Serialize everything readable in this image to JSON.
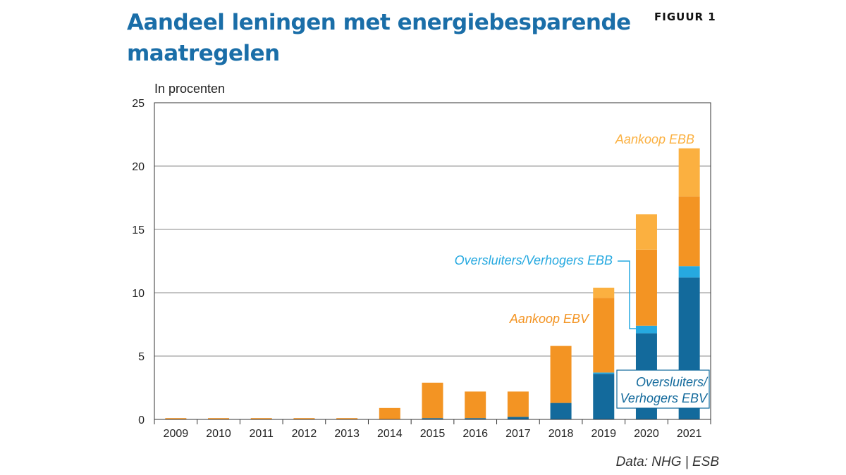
{
  "header": {
    "title": "Aandeel leningen met energiebesparende maatregelen",
    "figure_label": "FIGUUR 1"
  },
  "footer": {
    "source": "Data: NHG | ESB"
  },
  "colors": {
    "oversluiters_ebv": "#136a9c",
    "oversluiters_ebb": "#26a9e0",
    "aankoop_ebv": "#f39423",
    "aankoop_ebb": "#fbb040",
    "gridline": "#888888",
    "axis": "#333333"
  },
  "chart_data": {
    "type": "bar",
    "stacked": true,
    "title": "Aandeel leningen met energiebesparende maatregelen",
    "ylabel": "In procenten",
    "xlabel": "",
    "ylim": [
      0,
      25
    ],
    "yticks": [
      0,
      5,
      10,
      15,
      20,
      25
    ],
    "grid": true,
    "categories": [
      "2009",
      "2010",
      "2011",
      "2012",
      "2013",
      "2014",
      "2015",
      "2016",
      "2017",
      "2018",
      "2019",
      "2020",
      "2021"
    ],
    "series": [
      {
        "name": "Oversluiters/ Verhogers EBV",
        "color": "#136a9c",
        "values": [
          0,
          0,
          0,
          0,
          0,
          0,
          0.1,
          0.1,
          0.2,
          1.3,
          3.6,
          6.8,
          11.2
        ]
      },
      {
        "name": "Oversluiters/Verhogers EBB",
        "color": "#26a9e0",
        "values": [
          0,
          0,
          0,
          0,
          0,
          0,
          0,
          0,
          0,
          0,
          0.1,
          0.6,
          0.9
        ]
      },
      {
        "name": "Aankoop EBV",
        "color": "#f39423",
        "values": [
          0.1,
          0.1,
          0.1,
          0.1,
          0.1,
          0.9,
          2.8,
          2.1,
          2.0,
          4.5,
          5.9,
          6.0,
          5.5
        ]
      },
      {
        "name": "Aankoop EBB",
        "color": "#fbb040",
        "values": [
          0,
          0,
          0,
          0,
          0,
          0,
          0,
          0,
          0,
          0,
          0.8,
          2.8,
          3.8
        ]
      }
    ],
    "annotations": {
      "aankoop_ebb": "Aankoop EBB",
      "oversluiters_ebb": "Oversluiters/Verhogers EBB",
      "aankoop_ebv": "Aankoop EBV",
      "oversluiters_ebv_line1": "Oversluiters/",
      "oversluiters_ebv_line2": "Verhogers EBV"
    }
  }
}
